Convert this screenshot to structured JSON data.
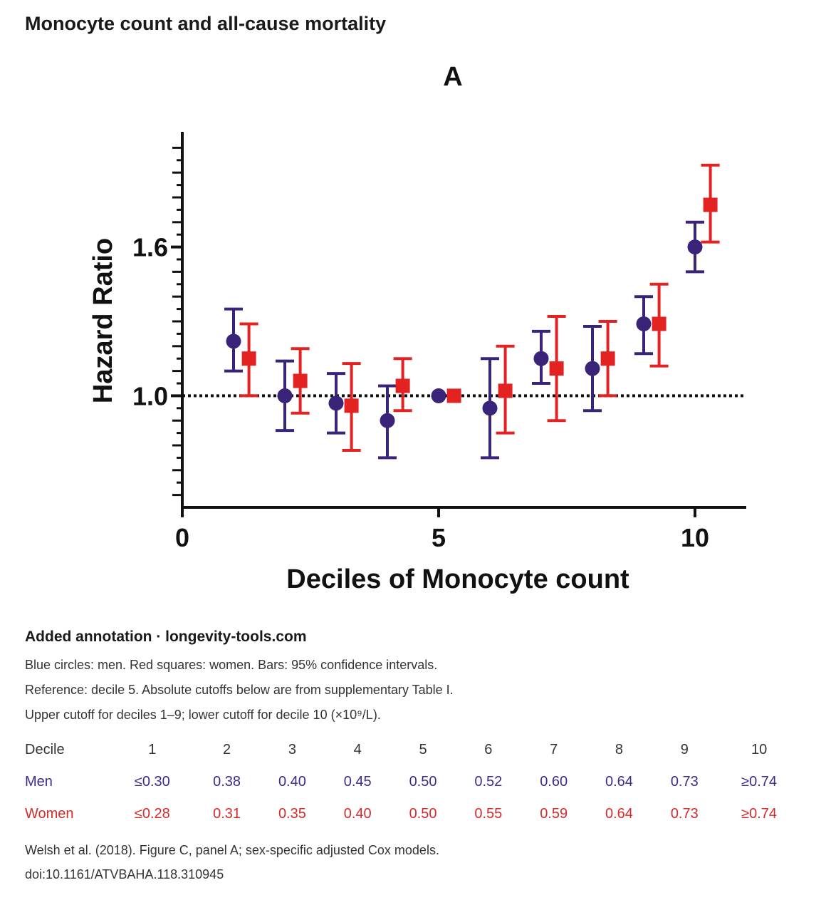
{
  "page_title": "Monocyte count and all-cause mortality",
  "colors": {
    "men": "#3a2479",
    "women": "#e32222",
    "axis": "#111111"
  },
  "chart_data": {
    "type": "scatter",
    "panel_label": "A",
    "xlabel": "Deciles of Monocyte count",
    "ylabel": "Hazard Ratio",
    "xlim": [
      0,
      11
    ],
    "ylim": [
      0.55,
      2.05
    ],
    "x_ticks": [
      0,
      5,
      10
    ],
    "y_ticks": [
      1.0,
      1.6
    ],
    "reference_line": 1.0,
    "series": [
      {
        "marker": "circle",
        "x": [
          1,
          2,
          3,
          4,
          5,
          6,
          7,
          8,
          9,
          10
        ],
        "y": [
          1.22,
          1.0,
          0.97,
          0.9,
          1.0,
          0.95,
          1.15,
          1.11,
          1.29,
          1.6
        ],
        "ci_low": [
          1.1,
          0.86,
          0.85,
          0.75,
          1.0,
          0.75,
          1.05,
          0.94,
          1.17,
          1.5
        ],
        "ci_high": [
          1.35,
          1.14,
          1.09,
          1.04,
          1.0,
          1.15,
          1.26,
          1.28,
          1.4,
          1.7
        ]
      },
      {
        "marker": "square",
        "x": [
          1,
          2,
          3,
          4,
          5,
          6,
          7,
          8,
          9,
          10
        ],
        "y": [
          1.15,
          1.06,
          0.96,
          1.04,
          1.0,
          1.02,
          1.11,
          1.15,
          1.29,
          1.77
        ],
        "ci_low": [
          1.0,
          0.93,
          0.78,
          0.94,
          1.0,
          0.85,
          0.9,
          1.0,
          1.12,
          1.62
        ],
        "ci_high": [
          1.29,
          1.19,
          1.13,
          1.15,
          1.0,
          1.2,
          1.32,
          1.3,
          1.45,
          1.93
        ]
      }
    ]
  },
  "annotation": {
    "heading": "Added annotation · longevity-tools.com",
    "line1": "Blue circles: men. Red squares: women. Bars: 95% confidence intervals.",
    "line2": "Reference: decile 5. Absolute cutoffs below are from supplementary Table I.",
    "line3": "Upper cutoff for deciles 1–9; lower cutoff for decile 10 (×10⁹/L)."
  },
  "cutoff_table": {
    "header_label": "Decile",
    "deciles": [
      "1",
      "2",
      "3",
      "4",
      "5",
      "6",
      "7",
      "8",
      "9",
      "10"
    ],
    "men_label": "Men",
    "men": [
      "≤0.30",
      "0.38",
      "0.40",
      "0.45",
      "0.50",
      "0.52",
      "0.60",
      "0.64",
      "0.73",
      "≥0.74"
    ],
    "women_label": "Women",
    "women": [
      "≤0.28",
      "0.31",
      "0.35",
      "0.40",
      "0.50",
      "0.55",
      "0.59",
      "0.64",
      "0.73",
      "≥0.74"
    ]
  },
  "source": {
    "citation": "Welsh et al. (2018). Figure C, panel A; sex-specific adjusted Cox models.",
    "doi": "doi:10.1161/ATVBAHA.118.310945"
  }
}
